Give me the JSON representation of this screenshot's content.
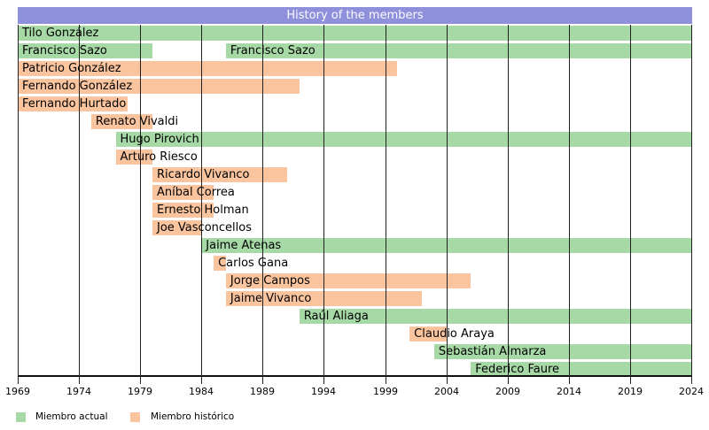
{
  "title": "History of the members",
  "colors": {
    "actual": "#a6d9a6",
    "historico": "#f9c49e",
    "title_bg": "#8e90dc",
    "title_text": "#fafafa",
    "grid": "#222222",
    "axis": "#111111",
    "background": "#ffffff"
  },
  "legend": {
    "items": [
      {
        "key": "actual",
        "label": "Miembro actual"
      },
      {
        "key": "historico",
        "label": "Miembro histórico"
      }
    ]
  },
  "axis": {
    "start_year": 1969,
    "end_year": 2024,
    "tick_years": [
      1969,
      1974,
      1979,
      1984,
      1989,
      1994,
      1999,
      2004,
      2009,
      2014,
      2019,
      2024
    ]
  },
  "chart_data": {
    "type": "timeline",
    "title": "History of the members",
    "x_range": [
      1969,
      2024
    ],
    "legend": [
      "Miembro actual",
      "Miembro histórico"
    ],
    "members": [
      {
        "name": "Tilo González",
        "status": "actual",
        "periods": [
          [
            1969,
            2024
          ]
        ]
      },
      {
        "name": "Francisco Sazo",
        "status": "actual",
        "periods": [
          [
            1969,
            1980
          ],
          [
            1986,
            2024
          ]
        ]
      },
      {
        "name": "Patricio González",
        "status": "historico",
        "periods": [
          [
            1969,
            2000
          ]
        ]
      },
      {
        "name": "Fernando González",
        "status": "historico",
        "periods": [
          [
            1969,
            1992
          ]
        ]
      },
      {
        "name": "Fernando Hurtado",
        "status": "historico",
        "periods": [
          [
            1969,
            1978
          ]
        ]
      },
      {
        "name": "Renato Vivaldi",
        "status": "historico",
        "periods": [
          [
            1975,
            1980
          ]
        ]
      },
      {
        "name": "Hugo Pirovich",
        "status": "actual",
        "periods": [
          [
            1977,
            2024
          ]
        ]
      },
      {
        "name": "Arturo Riesco",
        "status": "historico",
        "periods": [
          [
            1977,
            1980
          ]
        ]
      },
      {
        "name": "Ricardo Vivanco",
        "status": "historico",
        "periods": [
          [
            1980,
            1991
          ]
        ]
      },
      {
        "name": "Aníbal Correa",
        "status": "historico",
        "periods": [
          [
            1980,
            1985
          ]
        ]
      },
      {
        "name": "Ernesto Holman",
        "status": "historico",
        "periods": [
          [
            1980,
            1985
          ]
        ]
      },
      {
        "name": "Joe Vasconcellos",
        "status": "historico",
        "periods": [
          [
            1980,
            1984
          ]
        ]
      },
      {
        "name": "Jaime Atenas",
        "status": "actual",
        "periods": [
          [
            1984,
            2024
          ]
        ]
      },
      {
        "name": "Carlos Gana",
        "status": "historico",
        "periods": [
          [
            1985,
            1986
          ]
        ]
      },
      {
        "name": "Jorge Campos",
        "status": "historico",
        "periods": [
          [
            1986,
            2006
          ]
        ]
      },
      {
        "name": "Jaime Vivanco",
        "status": "historico",
        "periods": [
          [
            1986,
            2002
          ]
        ]
      },
      {
        "name": "Raúl Aliaga",
        "status": "actual",
        "periods": [
          [
            1992,
            2024
          ]
        ]
      },
      {
        "name": "Claudio Araya",
        "status": "historico",
        "periods": [
          [
            2001,
            2004
          ]
        ]
      },
      {
        "name": "Sebastián Almarza",
        "status": "actual",
        "periods": [
          [
            2003,
            2024
          ]
        ]
      },
      {
        "name": "Federico Faure",
        "status": "actual",
        "periods": [
          [
            2006,
            2024
          ]
        ]
      }
    ]
  }
}
